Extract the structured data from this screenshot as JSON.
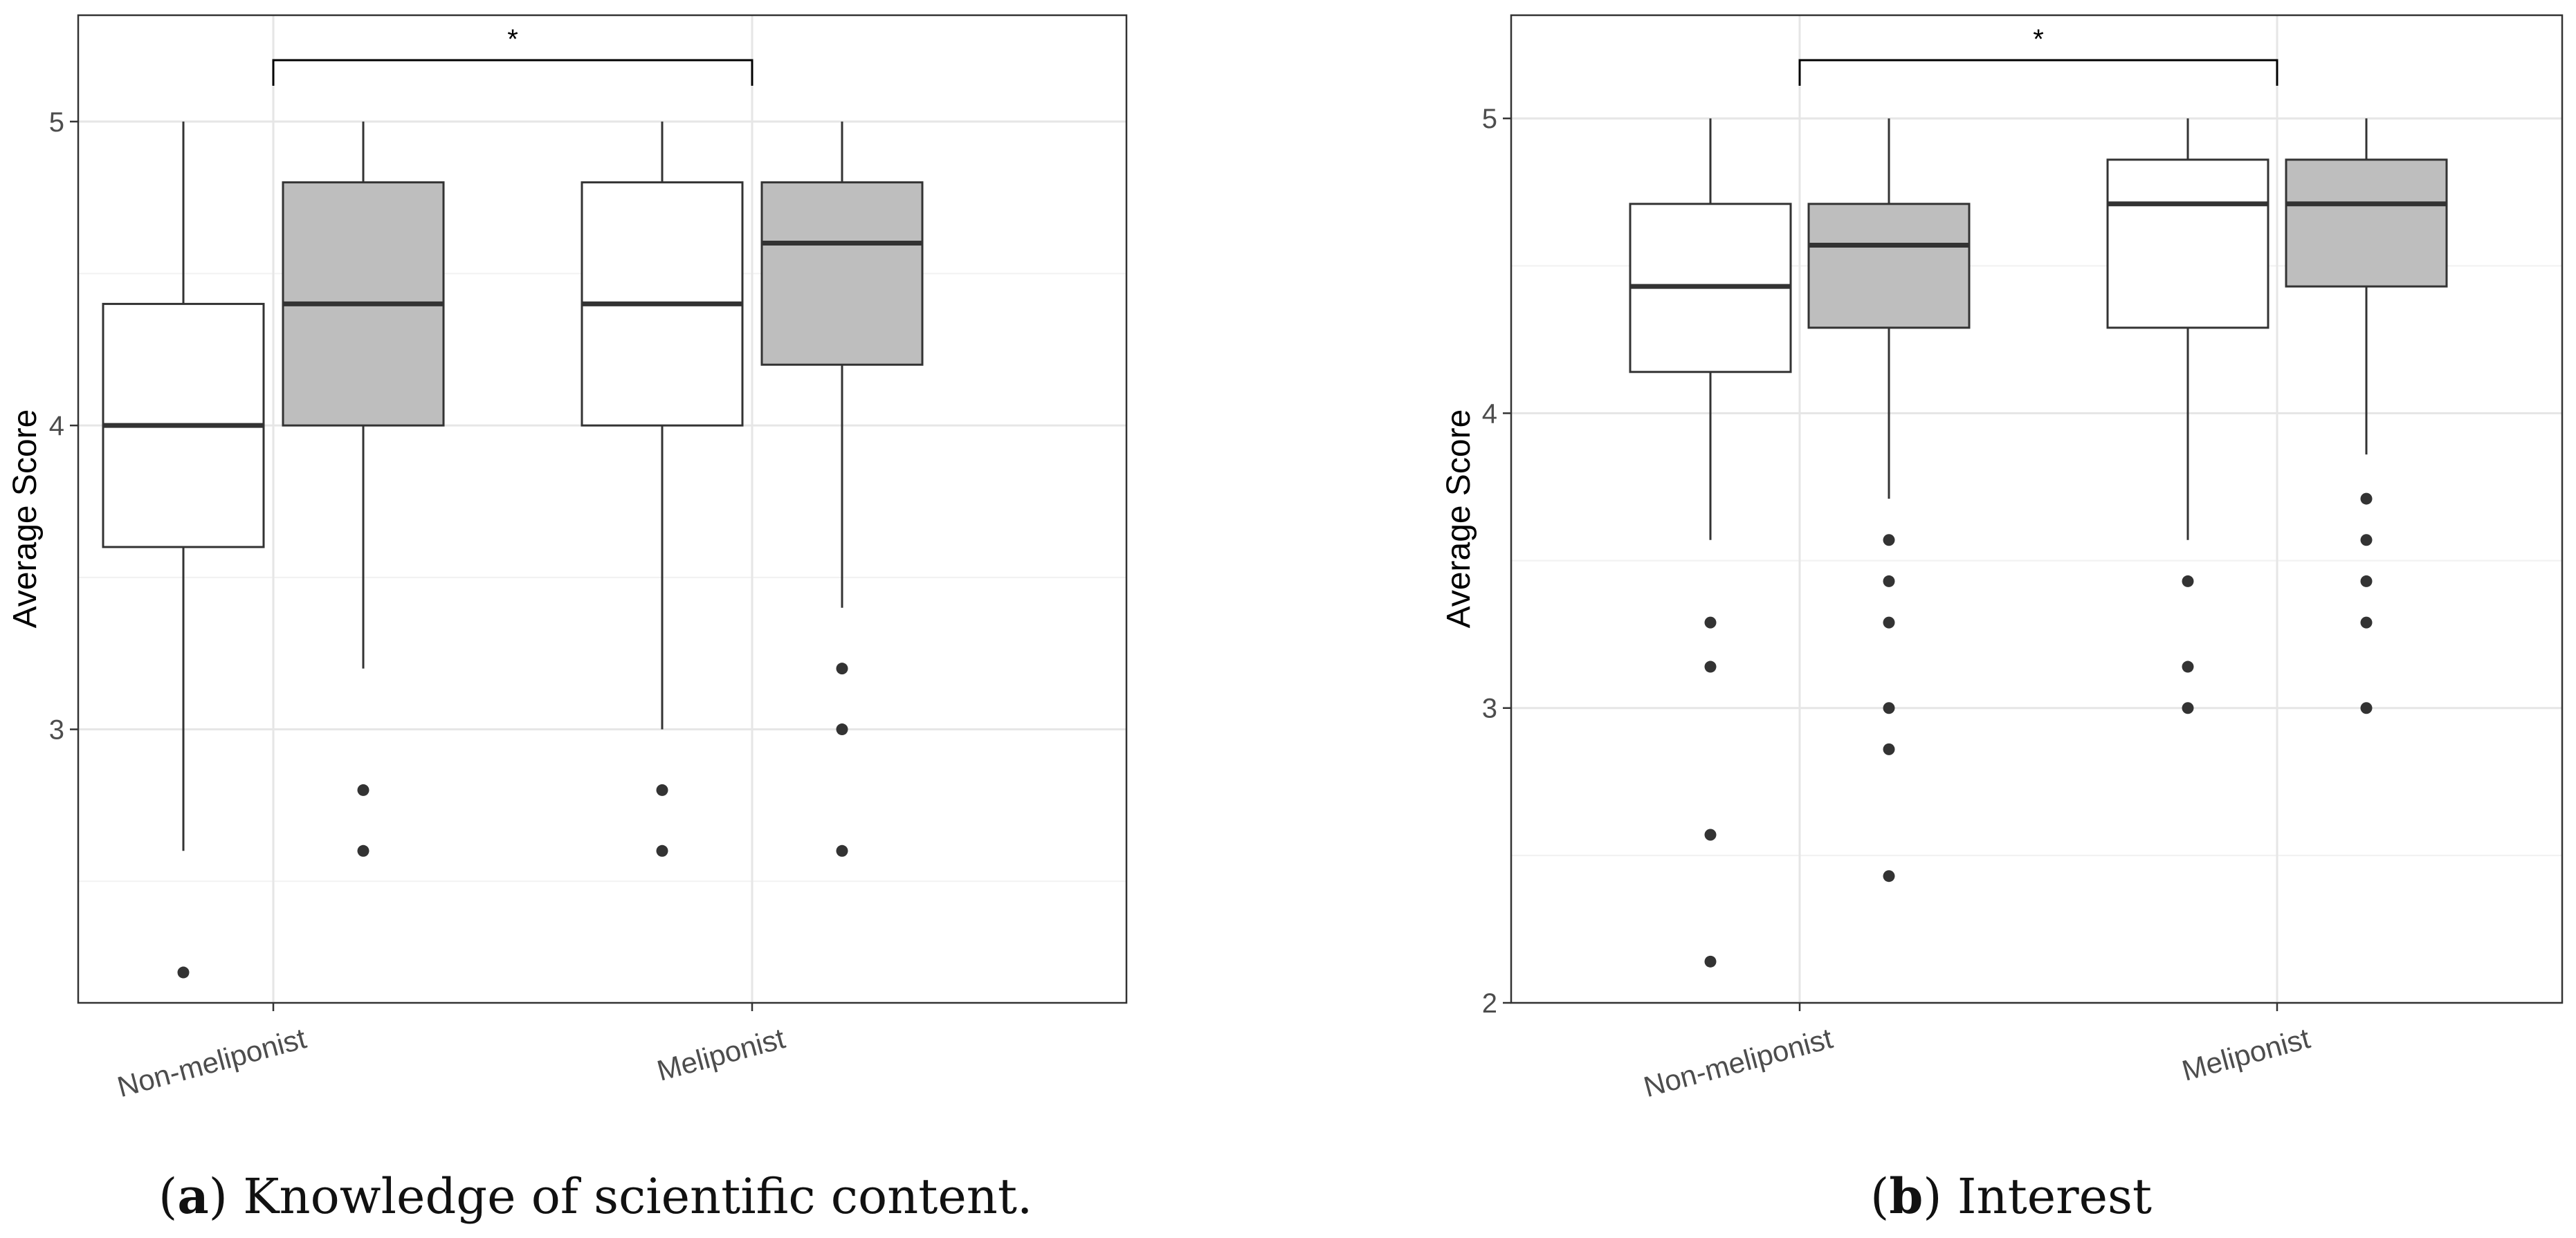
{
  "chart_data": [
    {
      "type": "boxplot",
      "caption_letter": "a",
      "caption_text": "Knowledge of scientific content.",
      "ylabel": "Average Score",
      "xlabel": "",
      "categories": [
        "Non-meliponist",
        "Meliponist"
      ],
      "yticks": [
        3,
        4,
        5
      ],
      "ylim": [
        2.1,
        5.35
      ],
      "grid": true,
      "significance": {
        "label": "*",
        "between": [
          "Non-meliponist",
          "Meliponist"
        ]
      },
      "series": [
        {
          "fill": "#ffffff",
          "boxes": [
            {
              "category": "Non-meliponist",
              "whisker_low": 2.6,
              "q1": 3.6,
              "median": 4.0,
              "q3": 4.4,
              "whisker_high": 5.0,
              "outliers": [
                2.2
              ]
            },
            {
              "category": "Meliponist",
              "whisker_low": 3.0,
              "q1": 4.0,
              "median": 4.4,
              "q3": 4.8,
              "whisker_high": 5.0,
              "outliers": [
                2.8,
                2.6
              ]
            }
          ]
        },
        {
          "fill": "#bebebe",
          "boxes": [
            {
              "category": "Non-meliponist",
              "whisker_low": 3.2,
              "q1": 4.0,
              "median": 4.4,
              "q3": 4.8,
              "whisker_high": 5.0,
              "outliers": [
                2.8,
                2.6
              ]
            },
            {
              "category": "Meliponist",
              "whisker_low": 3.4,
              "q1": 4.2,
              "median": 4.6,
              "q3": 4.8,
              "whisker_high": 5.0,
              "outliers": [
                3.2,
                3.0,
                2.6
              ]
            }
          ]
        }
      ]
    },
    {
      "type": "boxplot",
      "caption_letter": "b",
      "caption_text": "Interest",
      "ylabel": "Average Score",
      "xlabel": "",
      "categories": [
        "Non-meliponist",
        "Meliponist"
      ],
      "yticks": [
        2,
        3,
        4,
        5
      ],
      "ylim": [
        2.0,
        5.35
      ],
      "grid": true,
      "significance": {
        "label": "*",
        "between": [
          "Non-meliponist",
          "Meliponist"
        ]
      },
      "series": [
        {
          "fill": "#ffffff",
          "boxes": [
            {
              "category": "Non-meliponist",
              "whisker_low": 3.57,
              "q1": 4.14,
              "median": 4.43,
              "q3": 4.71,
              "whisker_high": 5.0,
              "outliers": [
                3.29,
                3.14,
                2.57,
                2.14
              ]
            },
            {
              "category": "Meliponist",
              "whisker_low": 3.57,
              "q1": 4.29,
              "median": 4.71,
              "q3": 4.86,
              "whisker_high": 5.0,
              "outliers": [
                3.43,
                3.14,
                3.0
              ]
            }
          ]
        },
        {
          "fill": "#bebebe",
          "boxes": [
            {
              "category": "Non-meliponist",
              "whisker_low": 3.71,
              "q1": 4.29,
              "median": 4.57,
              "q3": 4.71,
              "whisker_high": 5.0,
              "outliers": [
                3.57,
                3.43,
                3.29,
                3.0,
                2.86,
                2.43
              ]
            },
            {
              "category": "Meliponist",
              "whisker_low": 3.86,
              "q1": 4.43,
              "median": 4.71,
              "q3": 4.86,
              "whisker_high": 5.0,
              "outliers": [
                3.71,
                3.57,
                3.43,
                3.29,
                3.0
              ]
            }
          ]
        }
      ]
    }
  ]
}
